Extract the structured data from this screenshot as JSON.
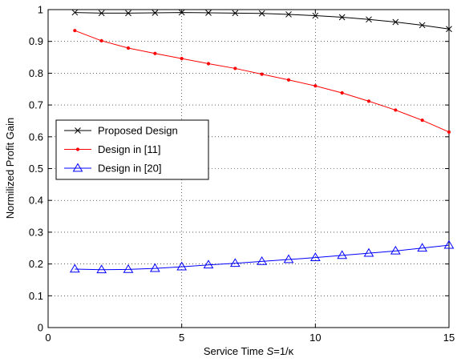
{
  "chart_data": {
    "type": "line",
    "title": "",
    "xlabel": {
      "prefix": "Service Time ",
      "italic": "S",
      "suffix": "=1/κ"
    },
    "ylabel": "Normilized Profit Gain",
    "xlim": [
      0,
      15
    ],
    "ylim": [
      0,
      1
    ],
    "x_ticks": [
      "0",
      "5",
      "10",
      "15"
    ],
    "y_ticks": [
      "0",
      "0.1",
      "0.2",
      "0.3",
      "0.4",
      "0.5",
      "0.6",
      "0.7",
      "0.8",
      "0.9",
      "1"
    ],
    "grid": true,
    "legend_position": "middle-left",
    "x": [
      1,
      2,
      3,
      4,
      5,
      6,
      7,
      8,
      9,
      10,
      11,
      12,
      13,
      14,
      15
    ],
    "series": [
      {
        "name": "Proposed Design",
        "color": "#000000",
        "marker": "x",
        "values": [
          0.991,
          0.989,
          0.989,
          0.99,
          0.991,
          0.99,
          0.989,
          0.988,
          0.985,
          0.981,
          0.976,
          0.969,
          0.961,
          0.951,
          0.939
        ]
      },
      {
        "name": "Design in [11]",
        "color": "#ff0000",
        "marker": "dot",
        "values": [
          0.934,
          0.902,
          0.879,
          0.862,
          0.846,
          0.83,
          0.815,
          0.797,
          0.779,
          0.76,
          0.738,
          0.712,
          0.684,
          0.652,
          0.615
        ]
      },
      {
        "name": "Design in [20]",
        "color": "#0000ff",
        "marker": "triangle",
        "values": [
          0.184,
          0.182,
          0.183,
          0.186,
          0.191,
          0.197,
          0.202,
          0.208,
          0.214,
          0.22,
          0.227,
          0.234,
          0.241,
          0.25,
          0.259
        ]
      }
    ]
  }
}
